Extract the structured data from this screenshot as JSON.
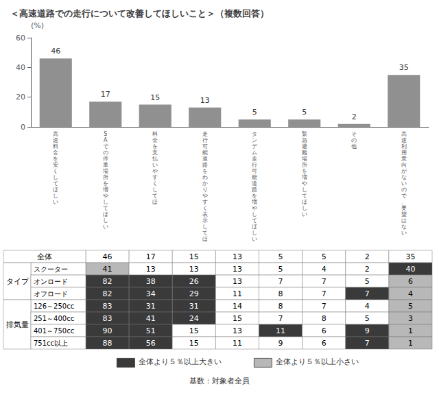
{
  "chart_data": [
    {
      "type": "bar",
      "title": "＜高速道路での走行について改善してほしいこと＞（複数回答）",
      "ylabel": "(%)",
      "categories": [
        "高\n速\n料\n金\nを\n安\nく\nし\nて\nほ\nし\nい",
        "S\nA\nで\nの\n停\n車\n場\n所\nを\n増\nや\nし\nて\nほ\nし\nい",
        "料\n金\nを\n支\n払\nい\nや\nす\nく\nし\nて\nほ",
        "走\n行\n可\n能\n道\n路\nを\nわ\nか\nり\nや\nす\nく\n表\n示\nし\nて\nほ",
        "タ\nン\nデ\nム\n走\n行\n可\n能\n道\n路\nを\n増\nや\nし\nて\nほ\nし\nい",
        "緊\n急\n避\n難\n場\n所\nを\n増\nや\nし\nて\nほ\nし\nい",
        "そ\nの\n他",
        "高\n速\n利\n用\n意\n向\nが\nな\nい\nの\nで\n、\n要\n望\nは\nな\nい"
      ],
      "values": [
        46,
        17,
        15,
        13,
        5,
        5,
        2,
        35
      ],
      "color": "#909090",
      "ylim": [
        0,
        60
      ],
      "yticks": [
        0,
        20,
        40,
        60
      ],
      "grid": false,
      "data_labels": true
    },
    {
      "type": "table",
      "rows": [
        {
          "label": "全体",
          "values": [
            46,
            17,
            15,
            13,
            5,
            5,
            2,
            35
          ],
          "colors": [
            "#ffffff",
            "#ffffff",
            "#ffffff",
            "#ffffff",
            "#ffffff",
            "#ffffff",
            "#ffffff",
            "#ffffff"
          ]
        },
        {
          "label": "スクーター",
          "values": [
            41,
            13,
            13,
            13,
            5,
            4,
            2,
            40
          ],
          "colors": [
            "#b8b8b8",
            "#ffffff",
            "#ffffff",
            "#ffffff",
            "#ffffff",
            "#ffffff",
            "#ffffff",
            "#3a3a3a"
          ]
        },
        {
          "label": "オンロード",
          "values": [
            82,
            38,
            26,
            13,
            7,
            7,
            5,
            6
          ],
          "colors": [
            "#3a3a3a",
            "#3a3a3a",
            "#3a3a3a",
            "#ffffff",
            "#ffffff",
            "#ffffff",
            "#ffffff",
            "#b8b8b8"
          ]
        },
        {
          "label": "オフロード",
          "values": [
            82,
            34,
            29,
            11,
            8,
            7,
            7,
            4
          ],
          "colors": [
            "#3a3a3a",
            "#3a3a3a",
            "#3a3a3a",
            "#ffffff",
            "#ffffff",
            "#ffffff",
            "#3a3a3a",
            "#b8b8b8"
          ]
        },
        {
          "label": "126～250cc",
          "values": [
            83,
            31,
            31,
            14,
            8,
            7,
            4,
            5
          ],
          "colors": [
            "#3a3a3a",
            "#3a3a3a",
            "#3a3a3a",
            "#ffffff",
            "#ffffff",
            "#ffffff",
            "#ffffff",
            "#b8b8b8"
          ]
        },
        {
          "label": "251～400cc",
          "values": [
            83,
            41,
            24,
            15,
            7,
            8,
            5,
            3
          ],
          "colors": [
            "#3a3a3a",
            "#3a3a3a",
            "#3a3a3a",
            "#ffffff",
            "#ffffff",
            "#ffffff",
            "#ffffff",
            "#b8b8b8"
          ]
        },
        {
          "label": "401～750cc",
          "values": [
            90,
            51,
            15,
            13,
            11,
            6,
            9,
            1
          ],
          "colors": [
            "#3a3a3a",
            "#3a3a3a",
            "#ffffff",
            "#ffffff",
            "#3a3a3a",
            "#ffffff",
            "#3a3a3a",
            "#b8b8b8"
          ]
        },
        {
          "label": "751cc以上",
          "values": [
            88,
            56,
            15,
            11,
            9,
            6,
            7,
            1
          ],
          "colors": [
            "#3a3a3a",
            "#3a3a3a",
            "#ffffff",
            "#ffffff",
            "#ffffff",
            "#ffffff",
            "#3a3a3a",
            "#b8b8b8"
          ]
        }
      ],
      "groups": [
        {
          "label": "タイプ",
          "rows": [
            "スクーター",
            "オンロード",
            "オフロード"
          ]
        },
        {
          "label": "排気量",
          "rows": [
            "126～250cc",
            "251～400cc",
            "401～750cc",
            "751cc以上"
          ]
        }
      ],
      "cell_legend": [
        {
          "label": "全体より５％以上大きい",
          "color": "#3a3a3a"
        },
        {
          "label": "全体より５％以上小さい",
          "color": "#b8b8b8"
        }
      ],
      "annotations": [
        "基数：対象者全員"
      ]
    }
  ]
}
